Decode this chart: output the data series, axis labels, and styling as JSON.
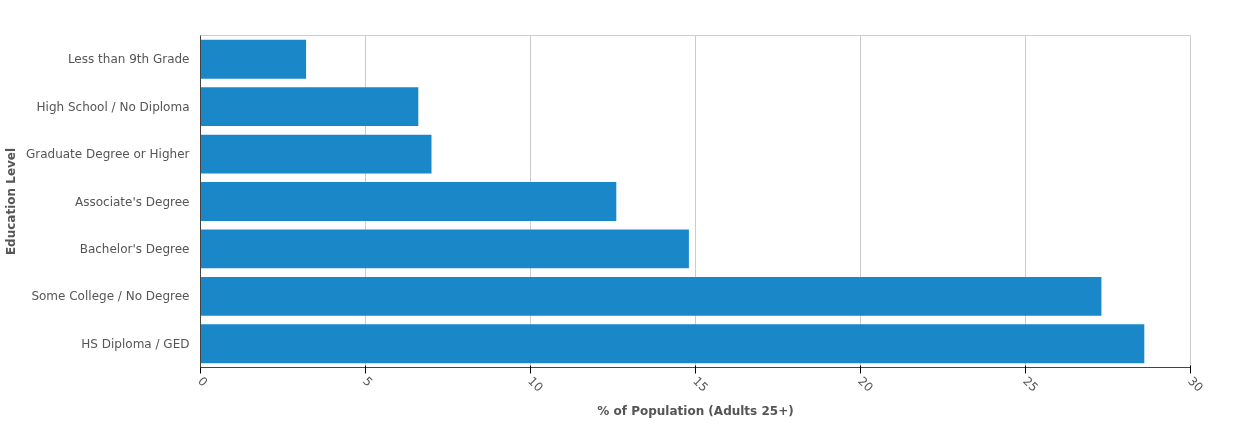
{
  "chart_data": {
    "type": "bar",
    "orientation": "horizontal",
    "xlabel": "% of Population (Adults 25+)",
    "ylabel": "Education Level",
    "categories": [
      "Less than 9th Grade",
      "High School / No Diploma",
      "Graduate Degree or Higher",
      "Associate's Degree",
      "Bachelor's Degree",
      "Some College / No Degree",
      "HS Diploma / GED"
    ],
    "values": [
      3.2,
      6.6,
      7.0,
      12.6,
      14.8,
      27.3,
      28.6
    ],
    "color": "#1a87c9",
    "xlim": [
      0,
      30
    ],
    "xticks": [
      0,
      5,
      10,
      15,
      20,
      25,
      30
    ],
    "grid": "x"
  }
}
